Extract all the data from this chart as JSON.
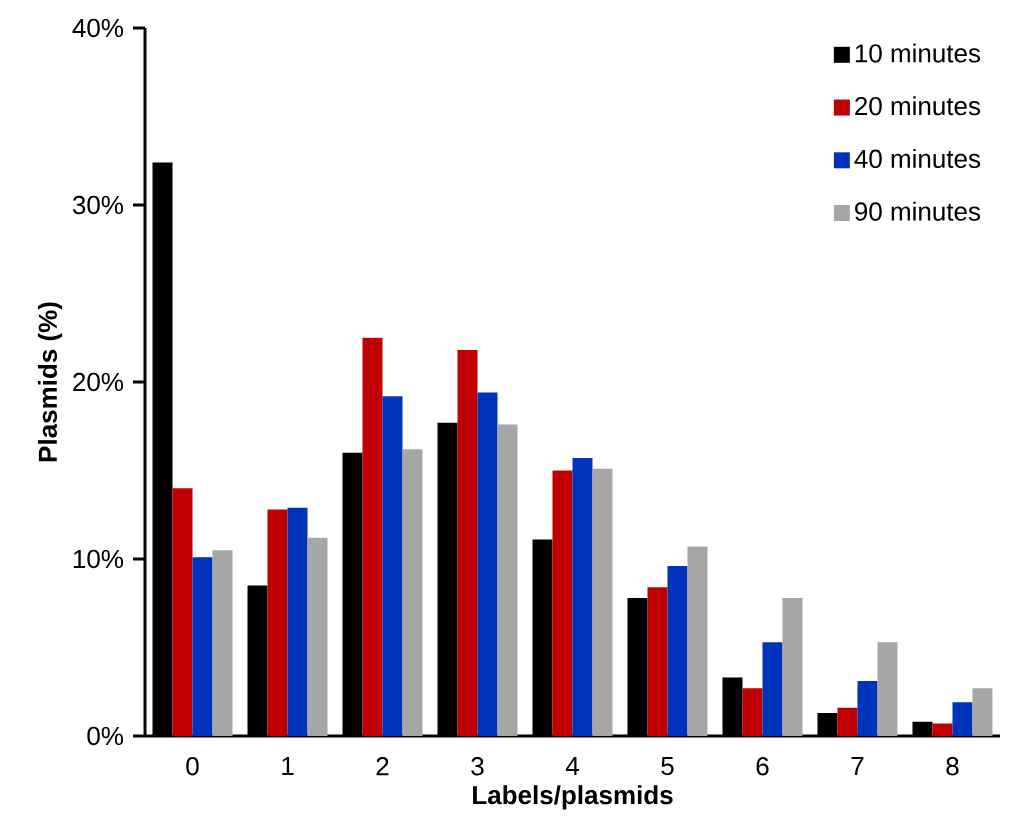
{
  "chart_data": {
    "type": "bar",
    "xlabel": "Labels/plasmids",
    "ylabel": "Plasmids (%)",
    "categories": [
      "0",
      "1",
      "2",
      "3",
      "4",
      "5",
      "6",
      "7",
      "8"
    ],
    "series": [
      {
        "name": "10 minutes",
        "color": "#000000",
        "values": [
          32.4,
          8.5,
          16.0,
          17.7,
          11.1,
          7.8,
          3.3,
          1.3,
          0.8
        ]
      },
      {
        "name": "20 minutes",
        "color": "#c00000",
        "values": [
          14.0,
          12.8,
          22.5,
          21.8,
          15.0,
          8.4,
          2.7,
          1.6,
          0.7
        ]
      },
      {
        "name": "40 minutes",
        "color": "#0033bb",
        "values": [
          10.1,
          12.9,
          19.2,
          19.4,
          15.7,
          9.6,
          5.3,
          3.1,
          1.9
        ]
      },
      {
        "name": "90 minutes",
        "color": "#a6a6a6",
        "values": [
          10.5,
          11.2,
          16.2,
          17.6,
          15.1,
          10.7,
          7.8,
          5.3,
          2.7
        ]
      }
    ],
    "ylim": [
      0,
      40
    ],
    "yticks": [
      {
        "value": 0,
        "label": "0%"
      },
      {
        "value": 10,
        "label": "10%"
      },
      {
        "value": 20,
        "label": "20%"
      },
      {
        "value": 30,
        "label": "30%"
      },
      {
        "value": 40,
        "label": "40%"
      }
    ],
    "legend": "top right"
  }
}
